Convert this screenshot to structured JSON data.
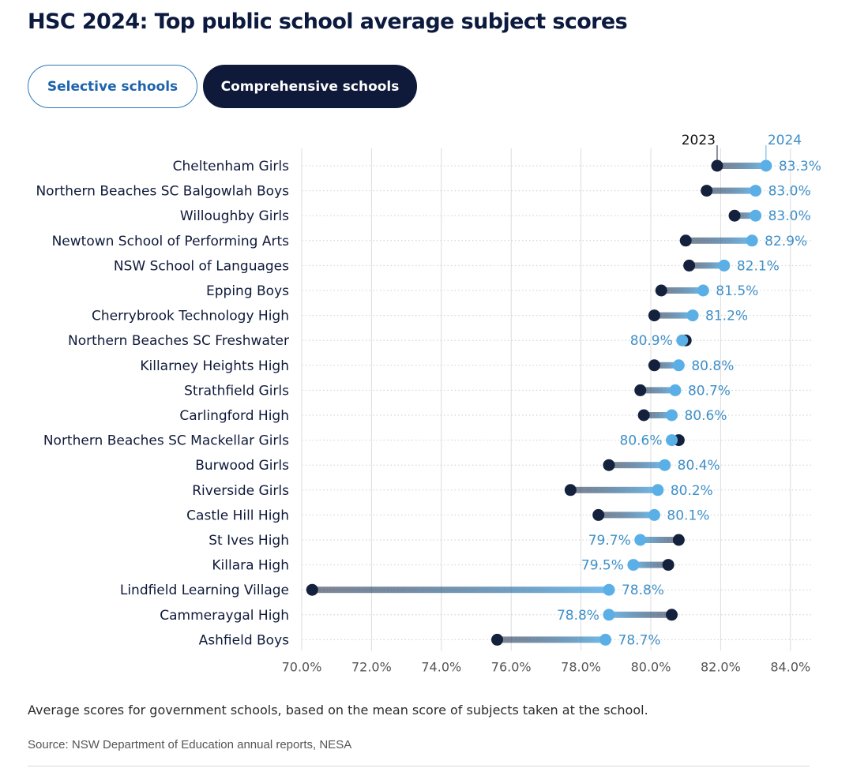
{
  "title": "HSC 2024: Top public school average subject scores",
  "tabs": [
    {
      "label": "Selective schools",
      "active": false
    },
    {
      "label": "Comprehensive schools",
      "active": true
    }
  ],
  "caption": "Average scores for government schools, based on the mean score of subjects taken at the school.",
  "source": "Source: NSW Department of Education annual reports, NESA",
  "colors": {
    "y2023": "#14213d",
    "y2024": "#5aafe6",
    "label2024": "#3f8fc8",
    "tabActiveBg": "#0f1a3a",
    "tabInactiveText": "#1d63ad",
    "grid": "#dcdcdc",
    "gridDotted": "#cfcfcf"
  },
  "chart_data": {
    "type": "dumbbell",
    "series": [
      {
        "name": "2023"
      },
      {
        "name": "2024"
      }
    ],
    "x_ticks": [
      "70.0%",
      "72.0%",
      "74.0%",
      "76.0%",
      "78.0%",
      "80.0%",
      "82.0%",
      "84.0%"
    ],
    "xlim": [
      70,
      84
    ],
    "grid": true,
    "rows": [
      {
        "school": "Cheltenham Girls",
        "v2023": 81.9,
        "v2024": 83.3,
        "label": "83.3%"
      },
      {
        "school": "Northern Beaches SC Balgowlah Boys",
        "v2023": 81.6,
        "v2024": 83.0,
        "label": "83.0%"
      },
      {
        "school": "Willoughby Girls",
        "v2023": 82.4,
        "v2024": 83.0,
        "label": "83.0%"
      },
      {
        "school": "Newtown School of Performing Arts",
        "v2023": 81.0,
        "v2024": 82.9,
        "label": "82.9%"
      },
      {
        "school": "NSW School of Languages",
        "v2023": 81.1,
        "v2024": 82.1,
        "label": "82.1%"
      },
      {
        "school": "Epping Boys",
        "v2023": 80.3,
        "v2024": 81.5,
        "label": "81.5%"
      },
      {
        "school": "Cherrybrook Technology High",
        "v2023": 80.1,
        "v2024": 81.2,
        "label": "81.2%"
      },
      {
        "school": "Northern Beaches SC Freshwater",
        "v2023": 81.0,
        "v2024": 80.9,
        "label": "80.9%"
      },
      {
        "school": "Killarney Heights High",
        "v2023": 80.1,
        "v2024": 80.8,
        "label": "80.8%"
      },
      {
        "school": "Strathfield Girls",
        "v2023": 79.7,
        "v2024": 80.7,
        "label": "80.7%"
      },
      {
        "school": "Carlingford High",
        "v2023": 79.8,
        "v2024": 80.6,
        "label": "80.6%"
      },
      {
        "school": "Northern Beaches SC Mackellar Girls",
        "v2023": 80.8,
        "v2024": 80.6,
        "label": "80.6%"
      },
      {
        "school": "Burwood Girls",
        "v2023": 78.8,
        "v2024": 80.4,
        "label": "80.4%"
      },
      {
        "school": "Riverside Girls",
        "v2023": 77.7,
        "v2024": 80.2,
        "label": "80.2%"
      },
      {
        "school": "Castle Hill High",
        "v2023": 78.5,
        "v2024": 80.1,
        "label": "80.1%"
      },
      {
        "school": "St Ives High",
        "v2023": 80.8,
        "v2024": 79.7,
        "label": "79.7%"
      },
      {
        "school": "Killara High",
        "v2023": 80.5,
        "v2024": 79.5,
        "label": "79.5%"
      },
      {
        "school": "Lindfield Learning Village",
        "v2023": 70.3,
        "v2024": 78.8,
        "label": "78.8%"
      },
      {
        "school": "Cammeraygal High",
        "v2023": 80.6,
        "v2024": 78.8,
        "label": "78.8%"
      },
      {
        "school": "Ashfield Boys",
        "v2023": 75.6,
        "v2024": 78.7,
        "label": "78.7%"
      }
    ]
  }
}
